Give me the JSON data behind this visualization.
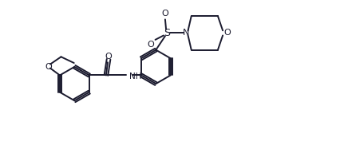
{
  "bg_color": "#ffffff",
  "line_color": "#1a1a2e",
  "figsize": [
    4.26,
    1.87
  ],
  "dpi": 100,
  "bond_lw": 1.4,
  "font_size": 7.5,
  "ring_r": 0.55,
  "xlim": [
    -0.5,
    10.5
  ],
  "ylim": [
    -0.2,
    4.5
  ]
}
